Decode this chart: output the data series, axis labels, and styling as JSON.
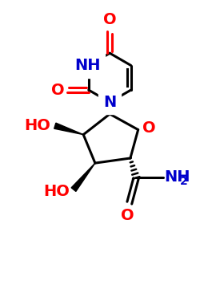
{
  "figsize": [
    2.5,
    3.5
  ],
  "dpi": 100,
  "bg_color": "#ffffff",
  "bond_color": "#000000",
  "bond_lw": 2.2,
  "heteroatom_color_N": "#0000cc",
  "heteroatom_color_O": "#ff0000",
  "font_size_atom": 14,
  "font_size_sub": 10,
  "xlim": [
    0,
    10
  ],
  "ylim": [
    0,
    14
  ]
}
